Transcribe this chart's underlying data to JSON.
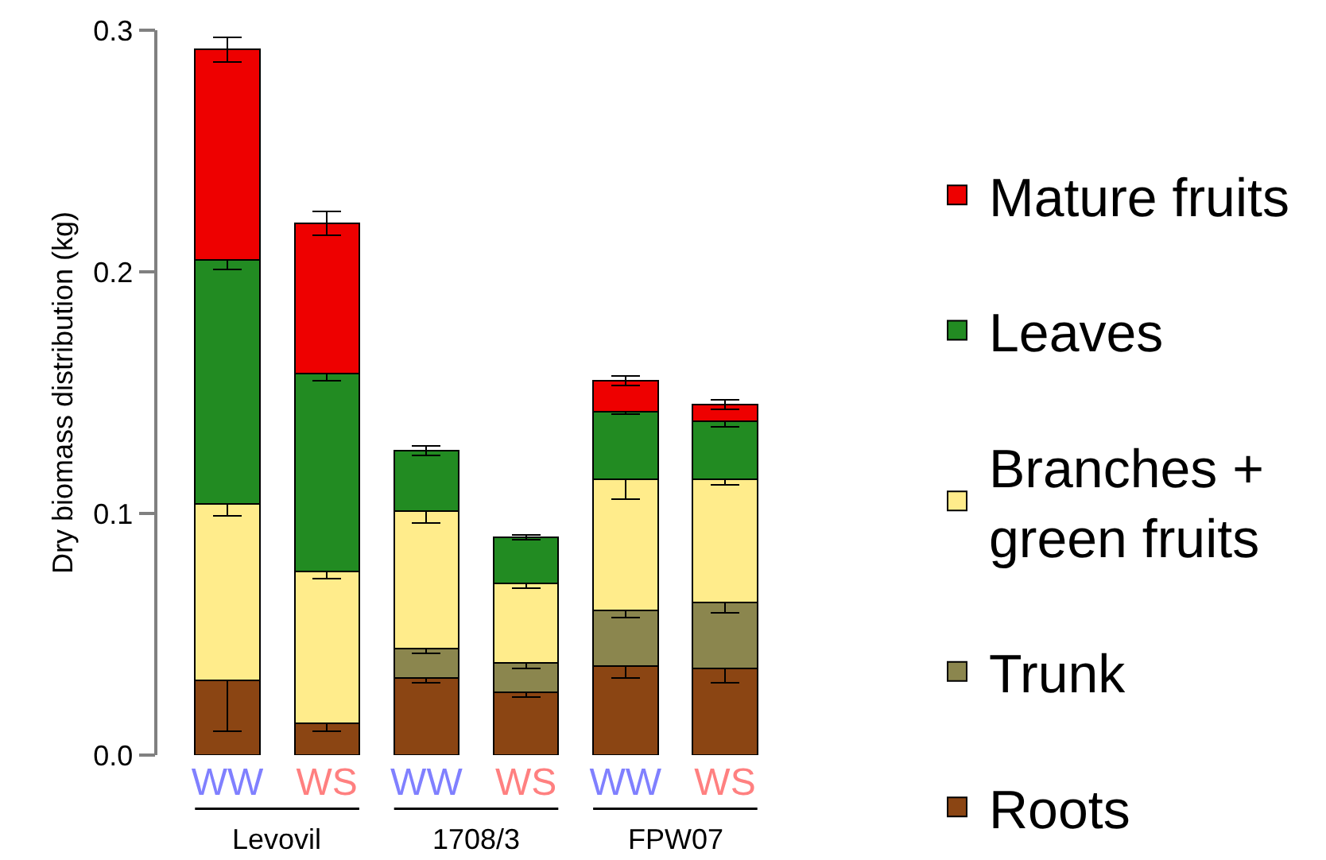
{
  "chart_data": {
    "type": "bar",
    "stacked": true,
    "ylabel": "Dry biomass distribution (kg)",
    "categories": [
      "WW",
      "WS",
      "WW",
      "WS",
      "WW",
      "WS"
    ],
    "annotations": [
      "Levovil",
      "1708/3",
      "FPW07"
    ],
    "series": [
      {
        "name": "Roots",
        "color": "#8b4513",
        "values": [
          0.031,
          0.013,
          0.032,
          0.026,
          0.037,
          0.036
        ],
        "errors": [
          0.021,
          0.003,
          0.002,
          0.002,
          0.005,
          0.006
        ]
      },
      {
        "name": "Trunk",
        "color": "#8b864e",
        "values": [
          null,
          null,
          0.012,
          0.012,
          0.023,
          0.027
        ],
        "errors": [
          null,
          null,
          0.002,
          0.002,
          0.003,
          0.004
        ]
      },
      {
        "name": "Branches +\ngreen fruits",
        "color": "#ffec8b",
        "values": [
          0.073,
          0.063,
          0.057,
          0.033,
          0.054,
          0.051
        ],
        "errors": [
          0.005,
          0.003,
          0.005,
          0.002,
          0.008,
          0.002
        ]
      },
      {
        "name": "Leaves",
        "color": "#228b22",
        "values": [
          0.101,
          0.082,
          0.025,
          0.019,
          0.028,
          0.024
        ],
        "errors": [
          0.004,
          0.003,
          0.002,
          0.001,
          0.001,
          0.002
        ]
      },
      {
        "name": "Mature fruits",
        "color": "#ee0000",
        "values": [
          0.087,
          0.062,
          null,
          null,
          0.013,
          0.007
        ],
        "errors": [
          0.005,
          0.005,
          null,
          null,
          0.002,
          0.002
        ]
      }
    ],
    "ylim": [
      0,
      0.3
    ],
    "yticks": [
      {
        "value": 0,
        "label": "0.0"
      },
      0.1,
      0.2,
      0.3
    ],
    "legend": "right",
    "grid": false
  }
}
